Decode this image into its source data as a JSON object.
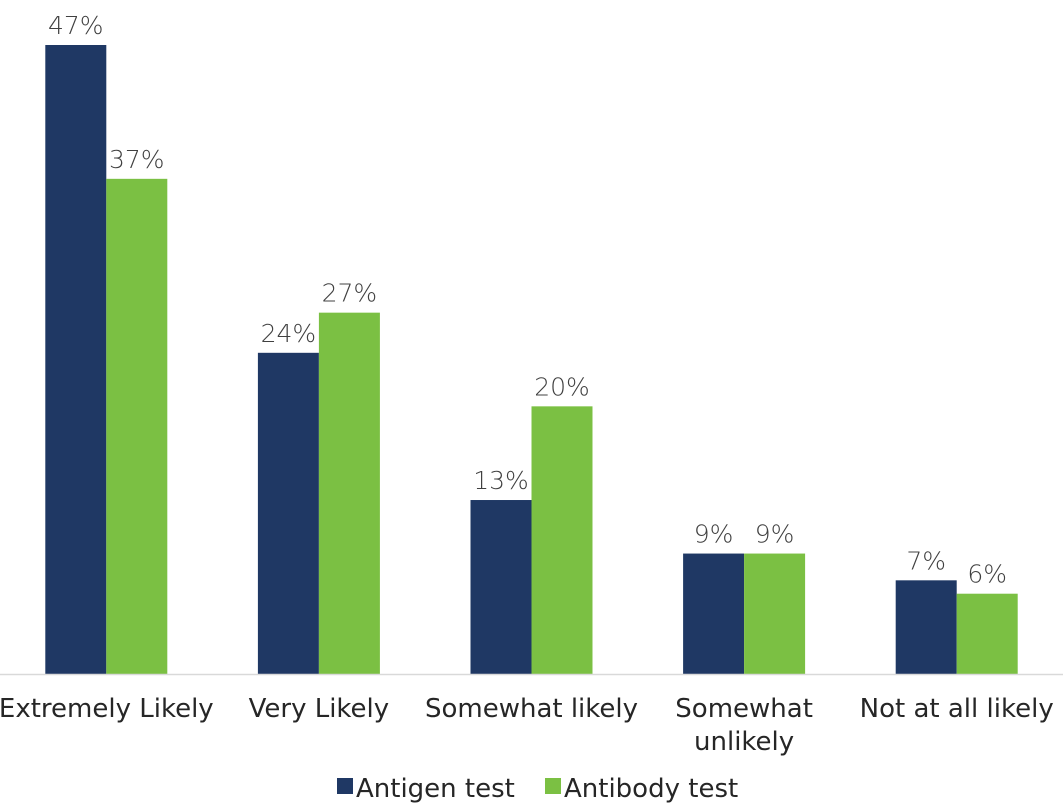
{
  "chart_data": {
    "type": "bar",
    "categories": [
      [
        "Extremely Likely"
      ],
      [
        "Very Likely"
      ],
      [
        "Somewhat likely"
      ],
      [
        "Somewhat",
        "unlikely"
      ],
      [
        "Not at all likely"
      ]
    ],
    "series": [
      {
        "name": "Antigen test",
        "color": "#1f3864",
        "values": [
          47,
          24,
          13,
          9,
          7
        ],
        "labels": [
          "47%",
          "24%",
          "13%",
          "9%",
          "7%"
        ]
      },
      {
        "name": "Antibody test",
        "color": "#7bc043",
        "values": [
          37,
          27,
          20,
          9,
          6
        ],
        "labels": [
          "37%",
          "27%",
          "20%",
          "9%",
          "6%"
        ]
      }
    ],
    "ylim": [
      0,
      47
    ],
    "grid": false,
    "legend_position": "bottom"
  }
}
